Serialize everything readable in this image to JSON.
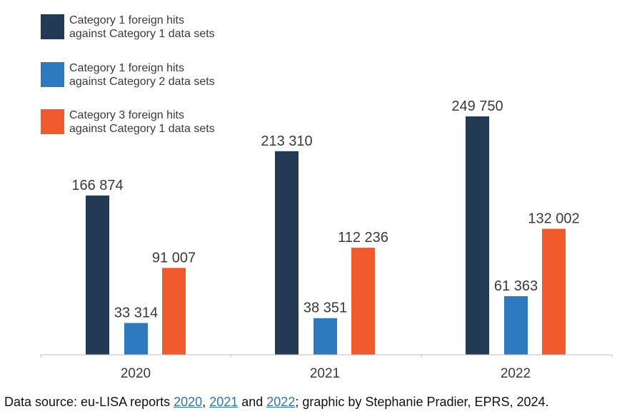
{
  "chart_data": {
    "type": "bar",
    "categories": [
      "2020",
      "2021",
      "2022"
    ],
    "series": [
      {
        "name": "Category 1 foreign hits against Category 1 data sets",
        "legend_lines": [
          "Category 1 foreign hits",
          "against Category 1 data sets"
        ],
        "color": "#223a54",
        "values": [
          166874,
          213310,
          249750
        ],
        "labels": [
          "166 874",
          "213 310",
          "249 750"
        ]
      },
      {
        "name": "Category 1 foreign hits against Category 2 data sets",
        "legend_lines": [
          "Category 1 foreign hits",
          "against Category 2 data sets"
        ],
        "color": "#2e7ac1",
        "values": [
          33314,
          38351,
          61363
        ],
        "labels": [
          "33 314",
          "38 351",
          "61 363"
        ]
      },
      {
        "name": "Category 3 foreign hits against Category 1 data sets",
        "legend_lines": [
          "Category 3 foreign hits",
          "against Category 1 data sets"
        ],
        "color": "#f05a2c",
        "values": [
          91007,
          112236,
          132002
        ],
        "labels": [
          "91 007",
          "112 236",
          "132 002"
        ]
      }
    ],
    "title": "",
    "xlabel": "",
    "ylabel": "",
    "ylim": [
      0,
      270000
    ],
    "grid": false,
    "legend_position": "top-left"
  },
  "caption": {
    "prefix": "Data source: eu-LISA reports ",
    "link_2020": "2020",
    "sep1": ", ",
    "link_2021": "2021",
    "sep2": " and ",
    "link_2022": "2022",
    "suffix": "; graphic by Stephanie Pradier, EPRS, 2024."
  }
}
